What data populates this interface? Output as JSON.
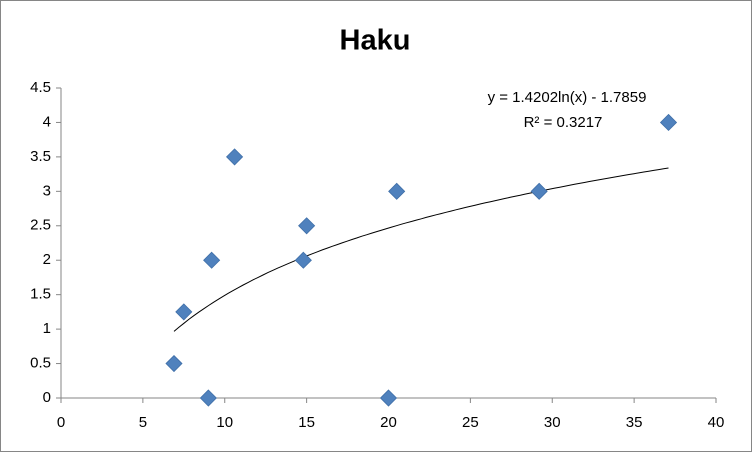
{
  "chart_data": {
    "type": "scatter",
    "title": "Haku",
    "x": [
      6.9,
      7.5,
      9.0,
      9.2,
      10.6,
      15.0,
      14.8,
      20.5,
      20.0,
      29.2,
      37.1
    ],
    "values": [
      0.5,
      1.25,
      0,
      2,
      3.5,
      2.5,
      2,
      3,
      0,
      3,
      4
    ],
    "color": "#4f81bd",
    "xlim": [
      0,
      40
    ],
    "xticks": [
      0,
      5,
      10,
      15,
      20,
      25,
      30,
      35,
      40
    ],
    "ylim": [
      0,
      4.5
    ],
    "yticks": [
      0,
      0.5,
      1,
      1.5,
      2,
      2.5,
      3,
      3.5,
      4,
      4.5
    ],
    "grid": false,
    "trendline": {
      "type": "log",
      "equation": "y = 1.4202ln(x) - 1.7859",
      "r_squared": "R² = 0.3217"
    }
  }
}
